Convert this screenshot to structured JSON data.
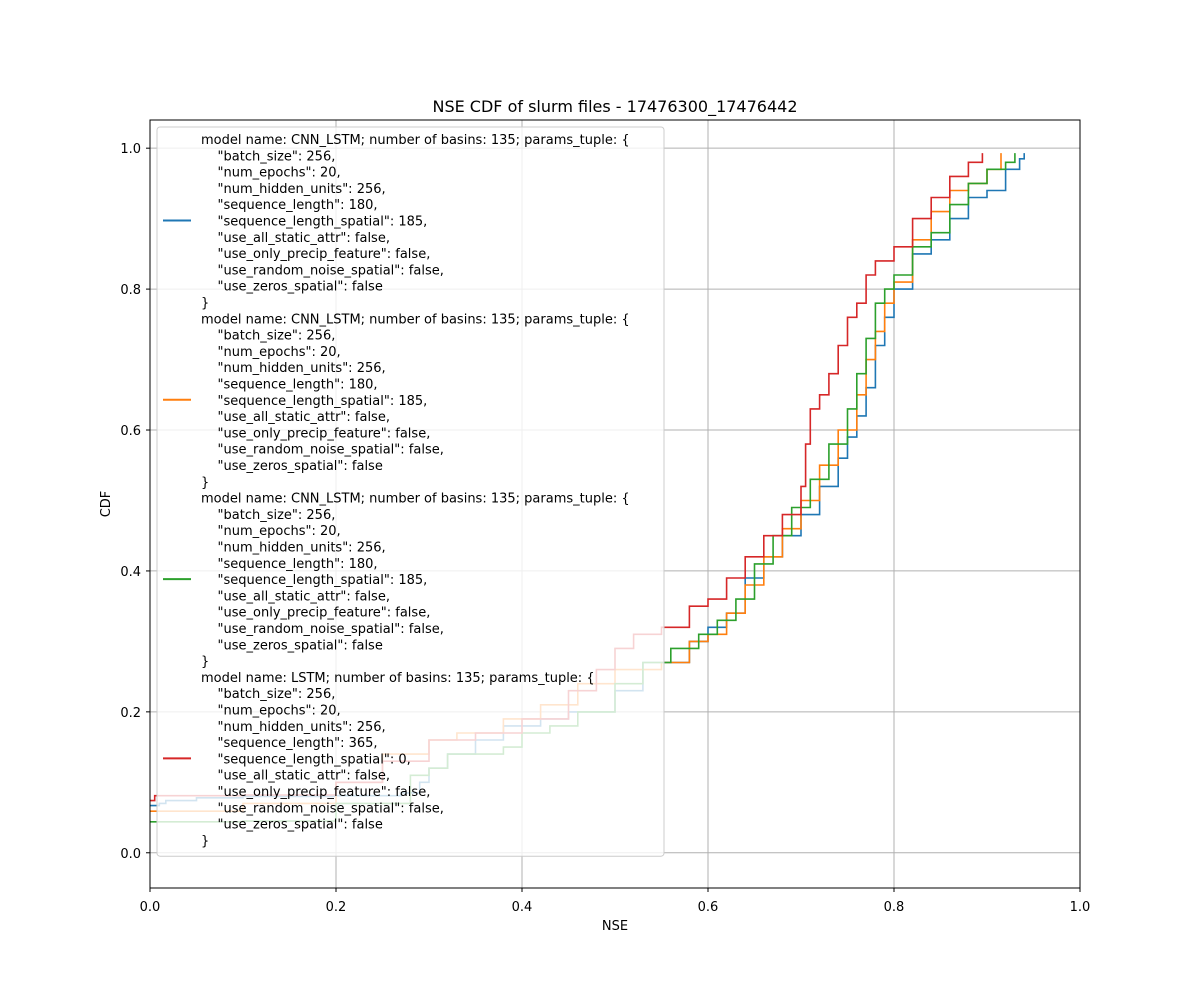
{
  "chart_data": {
    "type": "line",
    "title": "NSE CDF of slurm files - 17476300_17476442",
    "xlabel": "NSE",
    "ylabel": "CDF",
    "xlim": [
      0.0,
      1.0
    ],
    "ylim": [
      -0.05,
      1.04
    ],
    "xticks": [
      "0.0",
      "0.2",
      "0.4",
      "0.6",
      "0.8",
      "1.0"
    ],
    "yticks": [
      "0.0",
      "0.2",
      "0.4",
      "0.6",
      "0.8",
      "1.0"
    ],
    "grid": true,
    "legend_position": "top-left",
    "series": [
      {
        "name": "model name: CNN_LSTM; number of basins: 135; params_tuple: {\n    \"batch_size\": 256,\n    \"num_epochs\": 20,\n    \"num_hidden_units\": 256,\n    \"sequence_length\": 180,\n    \"sequence_length_spatial\": 185,\n    \"use_all_static_attr\": false,\n    \"use_only_precip_feature\": false,\n    \"use_random_noise_spatial\": false,\n    \"use_zeros_spatial\": false\n}",
        "color": "#1f77b4",
        "points": [
          [
            0.0,
            0.067
          ],
          [
            0.005,
            0.067
          ],
          [
            0.01,
            0.07
          ],
          [
            0.017,
            0.074
          ],
          [
            0.05,
            0.078
          ],
          [
            0.1,
            0.08
          ],
          [
            0.2,
            0.081
          ],
          [
            0.27,
            0.085
          ],
          [
            0.29,
            0.1
          ],
          [
            0.3,
            0.12
          ],
          [
            0.32,
            0.14
          ],
          [
            0.35,
            0.16
          ],
          [
            0.38,
            0.18
          ],
          [
            0.42,
            0.19
          ],
          [
            0.45,
            0.2
          ],
          [
            0.5,
            0.23
          ],
          [
            0.53,
            0.27
          ],
          [
            0.55,
            0.27
          ],
          [
            0.58,
            0.3
          ],
          [
            0.6,
            0.32
          ],
          [
            0.62,
            0.34
          ],
          [
            0.64,
            0.39
          ],
          [
            0.66,
            0.42
          ],
          [
            0.68,
            0.45
          ],
          [
            0.7,
            0.48
          ],
          [
            0.72,
            0.52
          ],
          [
            0.74,
            0.56
          ],
          [
            0.75,
            0.59
          ],
          [
            0.76,
            0.62
          ],
          [
            0.77,
            0.66
          ],
          [
            0.78,
            0.72
          ],
          [
            0.79,
            0.76
          ],
          [
            0.8,
            0.8
          ],
          [
            0.82,
            0.85
          ],
          [
            0.84,
            0.87
          ],
          [
            0.86,
            0.9
          ],
          [
            0.88,
            0.93
          ],
          [
            0.9,
            0.94
          ],
          [
            0.92,
            0.97
          ],
          [
            0.935,
            0.985
          ],
          [
            0.94,
            0.993
          ]
        ]
      },
      {
        "name": "model name: CNN_LSTM; number of basins: 135; params_tuple: {\n    \"batch_size\": 256,\n    \"num_epochs\": 20,\n    \"num_hidden_units\": 256,\n    \"sequence_length\": 180,\n    \"sequence_length_spatial\": 185,\n    \"use_all_static_attr\": false,\n    \"use_only_precip_feature\": false,\n    \"use_random_noise_spatial\": false,\n    \"use_zeros_spatial\": false\n}",
        "color": "#ff7f0e",
        "points": [
          [
            0.0,
            0.059
          ],
          [
            0.1,
            0.07
          ],
          [
            0.2,
            0.1
          ],
          [
            0.25,
            0.14
          ],
          [
            0.3,
            0.16
          ],
          [
            0.33,
            0.17
          ],
          [
            0.38,
            0.19
          ],
          [
            0.42,
            0.21
          ],
          [
            0.46,
            0.24
          ],
          [
            0.5,
            0.26
          ],
          [
            0.55,
            0.27
          ],
          [
            0.58,
            0.3
          ],
          [
            0.6,
            0.31
          ],
          [
            0.62,
            0.34
          ],
          [
            0.64,
            0.38
          ],
          [
            0.66,
            0.42
          ],
          [
            0.68,
            0.46
          ],
          [
            0.7,
            0.5
          ],
          [
            0.72,
            0.55
          ],
          [
            0.74,
            0.6
          ],
          [
            0.76,
            0.65
          ],
          [
            0.77,
            0.7
          ],
          [
            0.78,
            0.74
          ],
          [
            0.79,
            0.78
          ],
          [
            0.8,
            0.81
          ],
          [
            0.82,
            0.87
          ],
          [
            0.84,
            0.91
          ],
          [
            0.86,
            0.94
          ],
          [
            0.88,
            0.95
          ],
          [
            0.9,
            0.97
          ],
          [
            0.915,
            0.993
          ]
        ]
      },
      {
        "name": "model name: CNN_LSTM; number of basins: 135; params_tuple: {\n    \"batch_size\": 256,\n    \"num_epochs\": 20,\n    \"num_hidden_units\": 256,\n    \"sequence_length\": 180,\n    \"sequence_length_spatial\": 185,\n    \"use_all_static_attr\": false,\n    \"use_only_precip_feature\": false,\n    \"use_random_noise_spatial\": false,\n    \"use_zeros_spatial\": false\n}",
        "color": "#2ca02c",
        "points": [
          [
            0.0,
            0.044
          ],
          [
            0.1,
            0.045
          ],
          [
            0.2,
            0.07
          ],
          [
            0.28,
            0.11
          ],
          [
            0.3,
            0.12
          ],
          [
            0.32,
            0.14
          ],
          [
            0.38,
            0.15
          ],
          [
            0.4,
            0.17
          ],
          [
            0.43,
            0.18
          ],
          [
            0.46,
            0.2
          ],
          [
            0.5,
            0.24
          ],
          [
            0.53,
            0.27
          ],
          [
            0.56,
            0.29
          ],
          [
            0.59,
            0.31
          ],
          [
            0.61,
            0.33
          ],
          [
            0.63,
            0.36
          ],
          [
            0.65,
            0.41
          ],
          [
            0.67,
            0.45
          ],
          [
            0.69,
            0.49
          ],
          [
            0.71,
            0.53
          ],
          [
            0.73,
            0.58
          ],
          [
            0.75,
            0.63
          ],
          [
            0.76,
            0.68
          ],
          [
            0.77,
            0.73
          ],
          [
            0.78,
            0.78
          ],
          [
            0.79,
            0.8
          ],
          [
            0.8,
            0.82
          ],
          [
            0.82,
            0.86
          ],
          [
            0.84,
            0.88
          ],
          [
            0.86,
            0.92
          ],
          [
            0.88,
            0.95
          ],
          [
            0.9,
            0.97
          ],
          [
            0.92,
            0.98
          ],
          [
            0.93,
            0.993
          ]
        ]
      },
      {
        "name": "model name: LSTM; number of basins: 135; params_tuple: {\n    \"batch_size\": 256,\n    \"num_epochs\": 20,\n    \"num_hidden_units\": 256,\n    \"sequence_length\": 365,\n    \"sequence_length_spatial\": 0,\n    \"use_all_static_attr\": false,\n    \"use_only_precip_feature\": false,\n    \"use_random_noise_spatial\": false,\n    \"use_zeros_spatial\": false\n}",
        "color": "#d62728",
        "points": [
          [
            0.0,
            0.074
          ],
          [
            0.005,
            0.081
          ],
          [
            0.1,
            0.082
          ],
          [
            0.2,
            0.1
          ],
          [
            0.25,
            0.13
          ],
          [
            0.3,
            0.16
          ],
          [
            0.35,
            0.17
          ],
          [
            0.4,
            0.19
          ],
          [
            0.45,
            0.23
          ],
          [
            0.48,
            0.26
          ],
          [
            0.5,
            0.29
          ],
          [
            0.52,
            0.31
          ],
          [
            0.55,
            0.32
          ],
          [
            0.58,
            0.35
          ],
          [
            0.6,
            0.36
          ],
          [
            0.62,
            0.39
          ],
          [
            0.64,
            0.42
          ],
          [
            0.66,
            0.45
          ],
          [
            0.68,
            0.48
          ],
          [
            0.7,
            0.52
          ],
          [
            0.705,
            0.58
          ],
          [
            0.71,
            0.63
          ],
          [
            0.72,
            0.65
          ],
          [
            0.73,
            0.68
          ],
          [
            0.74,
            0.72
          ],
          [
            0.75,
            0.76
          ],
          [
            0.76,
            0.78
          ],
          [
            0.77,
            0.82
          ],
          [
            0.78,
            0.84
          ],
          [
            0.8,
            0.86
          ],
          [
            0.82,
            0.9
          ],
          [
            0.84,
            0.93
          ],
          [
            0.86,
            0.96
          ],
          [
            0.88,
            0.98
          ],
          [
            0.895,
            0.993
          ]
        ]
      }
    ]
  }
}
